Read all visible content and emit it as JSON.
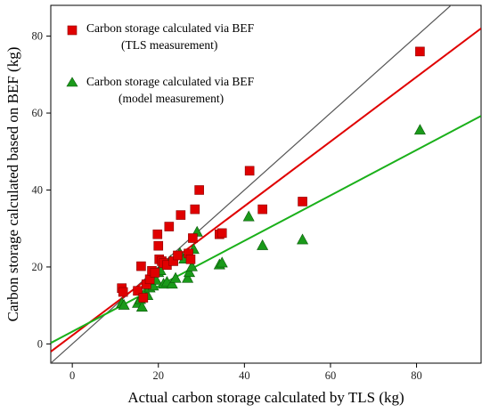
{
  "chart_data": {
    "type": "scatter",
    "title": "",
    "xlabel": "Actual carbon storage calculated by TLS (kg)",
    "ylabel": "Carbon storage calculated based on BEF (kg)",
    "xlim": [
      -5,
      95
    ],
    "ylim": [
      -5,
      88
    ],
    "xticks": [
      0,
      20,
      40,
      60,
      80
    ],
    "yticks": [
      0,
      20,
      40,
      60,
      80
    ],
    "grid": false,
    "legend_position": "top-left",
    "identity_line": {
      "from": [
        -5,
        -5
      ],
      "to": [
        95,
        95
      ],
      "color": "#555555"
    },
    "series": [
      {
        "name": "Carbon storage calculated via BEF",
        "name_line2": "(TLS measurement)",
        "marker": "square",
        "color": "#e00000",
        "fit_line": {
          "intercept": 2.2,
          "slope": 0.84,
          "color": "#e00000"
        },
        "points": [
          [
            11.5,
            14.5
          ],
          [
            11.8,
            13.5
          ],
          [
            15.2,
            13.8
          ],
          [
            16.0,
            20.2
          ],
          [
            16.5,
            12.0
          ],
          [
            17.2,
            15.5
          ],
          [
            18.0,
            16.8
          ],
          [
            18.5,
            19.0
          ],
          [
            19.2,
            18.5
          ],
          [
            19.8,
            28.5
          ],
          [
            20.0,
            25.5
          ],
          [
            20.2,
            22.0
          ],
          [
            20.8,
            21.5
          ],
          [
            21.2,
            21.0
          ],
          [
            22.0,
            20.5
          ],
          [
            22.5,
            30.5
          ],
          [
            23.5,
            21.5
          ],
          [
            24.5,
            23.0
          ],
          [
            25.2,
            33.5
          ],
          [
            27.0,
            23.5
          ],
          [
            27.5,
            22.0
          ],
          [
            28.0,
            27.5
          ],
          [
            28.5,
            35.0
          ],
          [
            29.5,
            40.0
          ],
          [
            34.2,
            28.5
          ],
          [
            34.8,
            28.8
          ],
          [
            41.2,
            45.0
          ],
          [
            44.2,
            35.0
          ],
          [
            53.5,
            37.0
          ],
          [
            80.8,
            76.0
          ]
        ]
      },
      {
        "name": "Carbon storage calculated via BEF",
        "name_line2": "(model measurement)",
        "marker": "triangle",
        "color": "#1a9a1a",
        "fit_line": {
          "intercept": 3.2,
          "slope": 0.59,
          "color": "#1ab01a"
        },
        "points": [
          [
            11.5,
            10.5
          ],
          [
            12.0,
            10.0
          ],
          [
            15.2,
            10.5
          ],
          [
            15.8,
            11.5
          ],
          [
            16.2,
            9.5
          ],
          [
            17.0,
            13.5
          ],
          [
            17.5,
            12.5
          ],
          [
            18.0,
            14.5
          ],
          [
            18.8,
            15.0
          ],
          [
            19.5,
            16.5
          ],
          [
            20.0,
            18.5
          ],
          [
            20.5,
            19.0
          ],
          [
            21.2,
            15.5
          ],
          [
            22.0,
            16.0
          ],
          [
            22.8,
            21.5
          ],
          [
            23.2,
            15.5
          ],
          [
            24.0,
            17.0
          ],
          [
            25.0,
            23.5
          ],
          [
            26.0,
            22.0
          ],
          [
            26.8,
            17.0
          ],
          [
            27.2,
            18.5
          ],
          [
            27.8,
            20.0
          ],
          [
            28.2,
            24.5
          ],
          [
            29.0,
            29.0
          ],
          [
            34.2,
            20.5
          ],
          [
            34.8,
            21.0
          ],
          [
            41.0,
            33.0
          ],
          [
            44.2,
            25.5
          ],
          [
            53.5,
            27.0
          ],
          [
            80.8,
            55.5
          ]
        ]
      }
    ]
  }
}
